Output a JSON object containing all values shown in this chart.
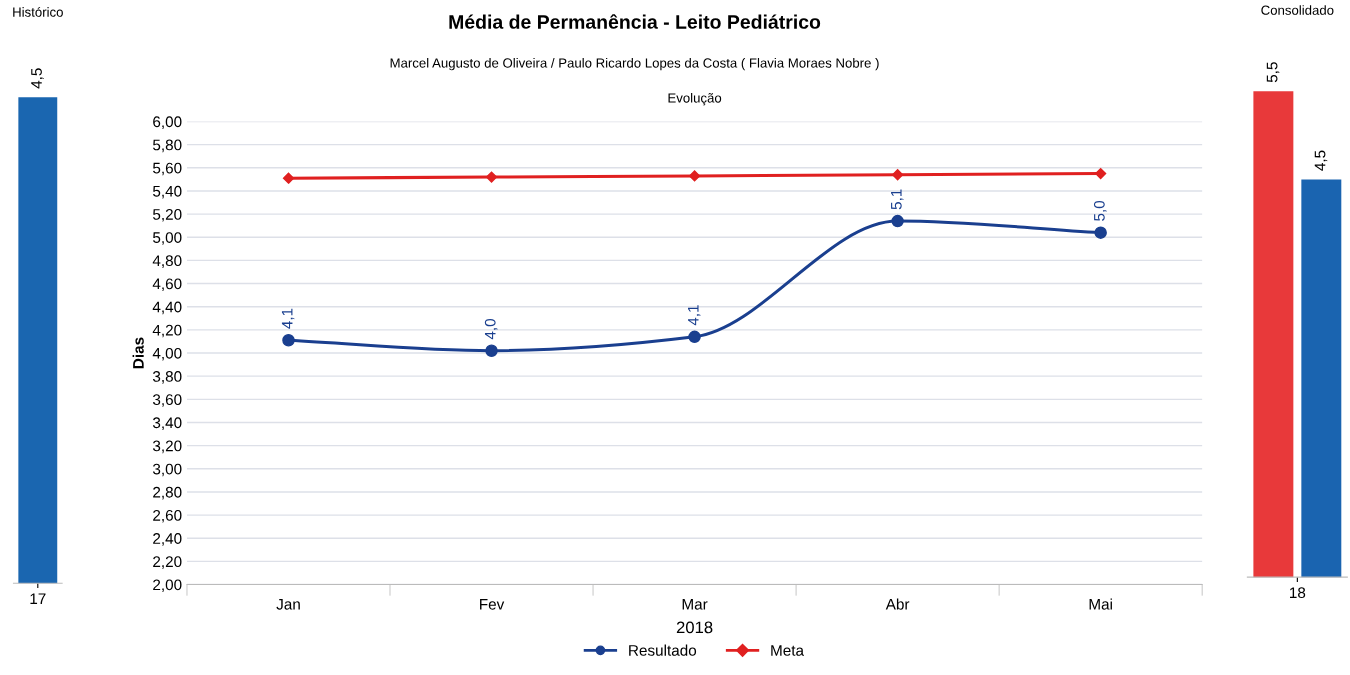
{
  "chart_data": [
    {
      "type": "bar",
      "title": "Histórico",
      "categories": [
        "17"
      ],
      "series": [
        {
          "color": "#1a66b0",
          "values": [
            4.5
          ],
          "value_labels": [
            "4,5"
          ]
        }
      ],
      "tick_labels": "x"
    },
    {
      "type": "line",
      "title": "Média de Permanência - Leito Pediátrico",
      "subtitle": "Marcel Augusto de Oliveira / Paulo Ricardo Lopes da Costa ( Flavia Moraes Nobre )",
      "annotations": [
        "Evolução"
      ],
      "xlabel": "2018",
      "ylabel": "Dias",
      "categories": [
        "Jan",
        "Fev",
        "Mar",
        "Abr",
        "Mai"
      ],
      "series": [
        {
          "name": "Resultado",
          "color": "#1a3f8f",
          "marker": "circle",
          "values": [
            4.11,
            4.02,
            4.14,
            5.14,
            5.04
          ],
          "value_labels": [
            "4,1",
            "4,0",
            "4,1",
            "5,1",
            "5,0"
          ]
        },
        {
          "name": "Meta",
          "color": "#e02020",
          "marker": "diamond",
          "values": [
            5.51,
            5.52,
            5.53,
            5.54,
            5.55
          ]
        }
      ],
      "ylim": [
        2,
        6
      ],
      "yticks": [
        {
          "value": 2.0,
          "label": "2,00"
        },
        {
          "value": 2.2,
          "label": "2,20"
        },
        {
          "value": 2.4,
          "label": "2,40"
        },
        {
          "value": 2.6,
          "label": "2,60"
        },
        {
          "value": 2.8,
          "label": "2,80"
        },
        {
          "value": 3.0,
          "label": "3,00"
        },
        {
          "value": 3.2,
          "label": "3,20"
        },
        {
          "value": 3.4,
          "label": "3,40"
        },
        {
          "value": 3.6,
          "label": "3,60"
        },
        {
          "value": 3.8,
          "label": "3,80"
        },
        {
          "value": 4.0,
          "label": "4,00"
        },
        {
          "value": 4.2,
          "label": "4,20"
        },
        {
          "value": 4.4,
          "label": "4,40"
        },
        {
          "value": 4.6,
          "label": "4,60"
        },
        {
          "value": 4.8,
          "label": "4,80"
        },
        {
          "value": 5.0,
          "label": "5,00"
        },
        {
          "value": 5.2,
          "label": "5,20"
        },
        {
          "value": 5.4,
          "label": "5,40"
        },
        {
          "value": 5.6,
          "label": "5,60"
        },
        {
          "value": 5.8,
          "label": "5,80"
        },
        {
          "value": 6.0,
          "label": "6,00"
        }
      ],
      "grid": "y",
      "legend": "bottom"
    },
    {
      "type": "bar",
      "title": "Consolidado",
      "categories": [
        "18"
      ],
      "series": [
        {
          "color": "#e8393a",
          "values": [
            5.5
          ],
          "value_labels": [
            "5,5"
          ]
        },
        {
          "color": "#1a64b0",
          "values": [
            4.5
          ],
          "value_labels": [
            "4,5"
          ]
        }
      ],
      "tick_labels": "x"
    }
  ]
}
